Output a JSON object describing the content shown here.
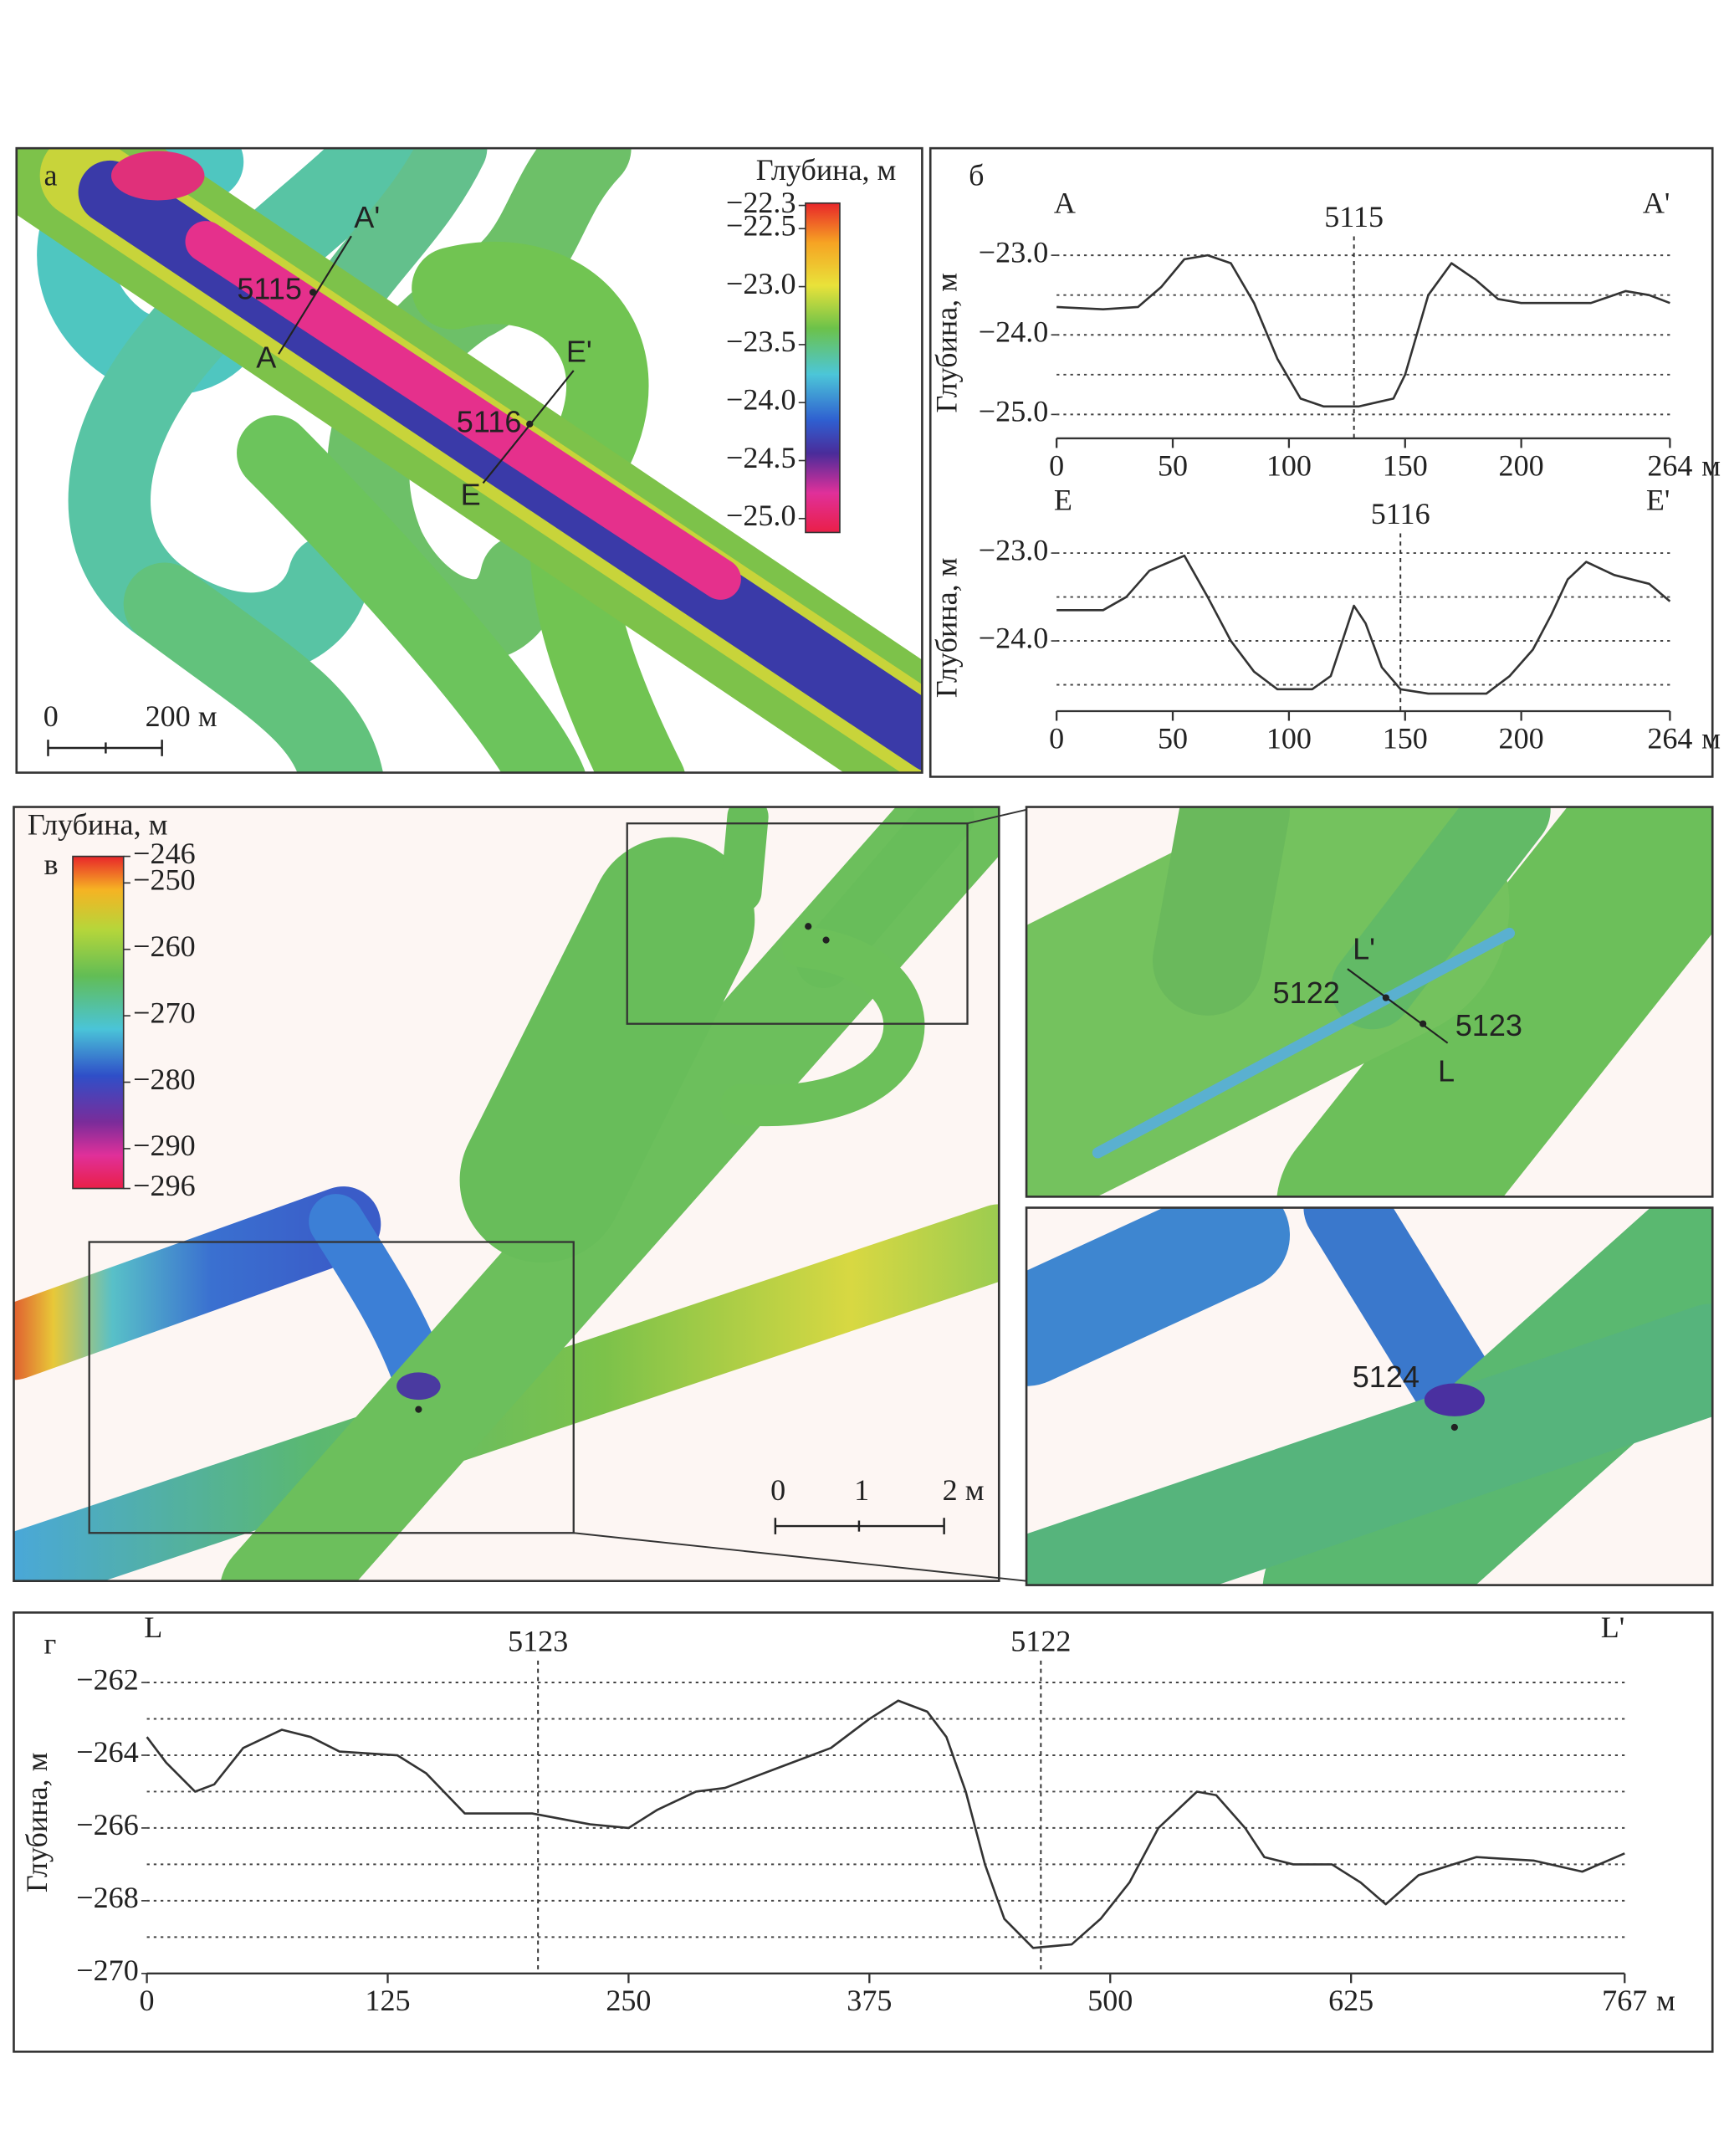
{
  "panel_labels": [
    "а",
    "б",
    "в",
    "г"
  ],
  "chart_data": [
    {
      "type": "line",
      "y_label": "Глубина, м",
      "x_unit": "м",
      "start_label": "A",
      "end_label": "A'",
      "markers": [
        {
          "x": 128,
          "label": "5115"
        }
      ],
      "color": "#333333",
      "x": [
        0,
        20,
        35,
        45,
        55,
        65,
        75,
        85,
        95,
        105,
        115,
        130,
        145,
        150,
        160,
        170,
        180,
        190,
        200,
        230,
        245,
        255,
        264
      ],
      "values": [
        -23.65,
        -23.68,
        -23.65,
        -23.4,
        -23.05,
        -23.0,
        -23.1,
        -23.6,
        -24.3,
        -24.8,
        -24.9,
        -24.9,
        -24.8,
        -24.5,
        -23.5,
        -23.1,
        -23.3,
        -23.55,
        -23.6,
        -23.6,
        -23.45,
        -23.5,
        -23.6
      ],
      "xlim": [
        0,
        264
      ],
      "xticks": [
        0,
        50,
        100,
        150,
        200,
        264
      ],
      "ylim": [
        -25.3,
        -22.9
      ],
      "yticks": [
        {
          "value": -23,
          "label": "−23.0"
        },
        {
          "value": -24,
          "label": "−24.0"
        },
        {
          "value": -25,
          "label": "−25.0"
        }
      ],
      "ygrid": [
        -23,
        -23.5,
        -24,
        -24.5,
        -25
      ]
    },
    {
      "type": "line",
      "y_label": "Глубина, м",
      "x_unit": "м",
      "start_label": "E",
      "end_label": "E'",
      "markers": [
        {
          "x": 148,
          "label": "5116"
        }
      ],
      "color": "#333333",
      "x": [
        0,
        20,
        30,
        40,
        55,
        65,
        75,
        85,
        95,
        110,
        118,
        123,
        128,
        133,
        140,
        148,
        160,
        175,
        185,
        195,
        205,
        213,
        220,
        228,
        240,
        255,
        264
      ],
      "values": [
        -23.65,
        -23.65,
        -23.5,
        -23.2,
        -23.03,
        -23.5,
        -24.0,
        -24.35,
        -24.55,
        -24.55,
        -24.4,
        -24.0,
        -23.6,
        -23.8,
        -24.3,
        -24.55,
        -24.6,
        -24.6,
        -24.6,
        -24.4,
        -24.1,
        -23.7,
        -23.3,
        -23.1,
        -23.25,
        -23.35,
        -23.55
      ],
      "xlim": [
        0,
        264
      ],
      "xticks": [
        0,
        50,
        100,
        150,
        200,
        264
      ],
      "ylim": [
        -24.8,
        -22.9
      ],
      "yticks": [
        {
          "value": -23,
          "label": "−23.0"
        },
        {
          "value": -24,
          "label": "−24.0"
        }
      ],
      "ygrid": [
        -23,
        -23.5,
        -24,
        -24.5
      ]
    },
    {
      "type": "line",
      "y_label": "Глубина, м",
      "x_unit": "м",
      "start_label": "L",
      "end_label": "L'",
      "markers": [
        {
          "x": 203,
          "label": "5123"
        },
        {
          "x": 464,
          "label": "5122"
        }
      ],
      "color": "#333333",
      "x": [
        0,
        10,
        25,
        35,
        50,
        70,
        85,
        100,
        130,
        145,
        165,
        200,
        230,
        250,
        265,
        285,
        300,
        330,
        355,
        375,
        390,
        405,
        415,
        425,
        435,
        445,
        460,
        480,
        495,
        510,
        525,
        545,
        555,
        570,
        580,
        595,
        615,
        630,
        643,
        660,
        690,
        720,
        745,
        767
      ],
      "values": [
        -263.5,
        -264.2,
        -265.0,
        -264.8,
        -263.8,
        -263.3,
        -263.5,
        -263.9,
        -264.0,
        -264.5,
        -265.6,
        -265.6,
        -265.9,
        -266.0,
        -265.5,
        -265.0,
        -264.9,
        -264.3,
        -263.8,
        -263.0,
        -262.5,
        -262.8,
        -263.5,
        -265.0,
        -267.0,
        -268.5,
        -269.3,
        -269.2,
        -268.5,
        -267.5,
        -266.0,
        -265.0,
        -265.1,
        -266.0,
        -266.8,
        -267.0,
        -267.0,
        -267.5,
        -268.1,
        -267.3,
        -266.8,
        -266.9,
        -267.2,
        -266.7
      ],
      "xlim": [
        0,
        767
      ],
      "xticks": [
        0,
        125,
        250,
        375,
        500,
        625,
        767
      ],
      "ylim": [
        -270,
        -261.7
      ],
      "yticks": [
        {
          "value": -262,
          "label": "−262"
        },
        {
          "value": -264,
          "label": "−264"
        },
        {
          "value": -266,
          "label": "−266"
        },
        {
          "value": -268,
          "label": "−268"
        },
        {
          "value": -270,
          "label": "−270"
        }
      ],
      "ygrid": [
        -262,
        -263,
        -264,
        -265,
        -266,
        -267,
        -268,
        -269
      ]
    }
  ],
  "maps": [
    {
      "colorbar": {
        "title": "Глубина, м",
        "clim": [
          -25.12,
          -22.28
        ],
        "ticks": [
          {
            "value": -22.3,
            "label": "−22.3"
          },
          {
            "value": -22.5,
            "label": "−22.5"
          },
          {
            "value": -23,
            "label": "−23.0"
          },
          {
            "value": -23.5,
            "label": "−23.5"
          },
          {
            "value": -24,
            "label": "−24.0"
          },
          {
            "value": -24.5,
            "label": "−24.5"
          },
          {
            "value": -25,
            "label": "−25.0"
          }
        ]
      },
      "scale_labels": [
        "0",
        "200 м"
      ],
      "labels": [
        "A'",
        "5115",
        "A",
        "E'",
        "5116",
        "E"
      ]
    },
    {
      "colorbar": {
        "title": "Глубина, м",
        "clim": [
          -296,
          -246
        ],
        "ticks": [
          {
            "value": -246,
            "label": "−246"
          },
          {
            "value": -250,
            "label": "−250"
          },
          {
            "value": -260,
            "label": "−260"
          },
          {
            "value": -270,
            "label": "−270"
          },
          {
            "value": -280,
            "label": "−280"
          },
          {
            "value": -290,
            "label": "−290"
          },
          {
            "value": -296,
            "label": "−296"
          }
        ]
      },
      "scale_labels": [
        "0",
        "1",
        "2 м"
      ],
      "labels": []
    },
    {
      "labels": [
        "L'",
        "5122",
        "5123",
        "L"
      ]
    },
    {
      "labels": [
        "5124"
      ]
    }
  ]
}
